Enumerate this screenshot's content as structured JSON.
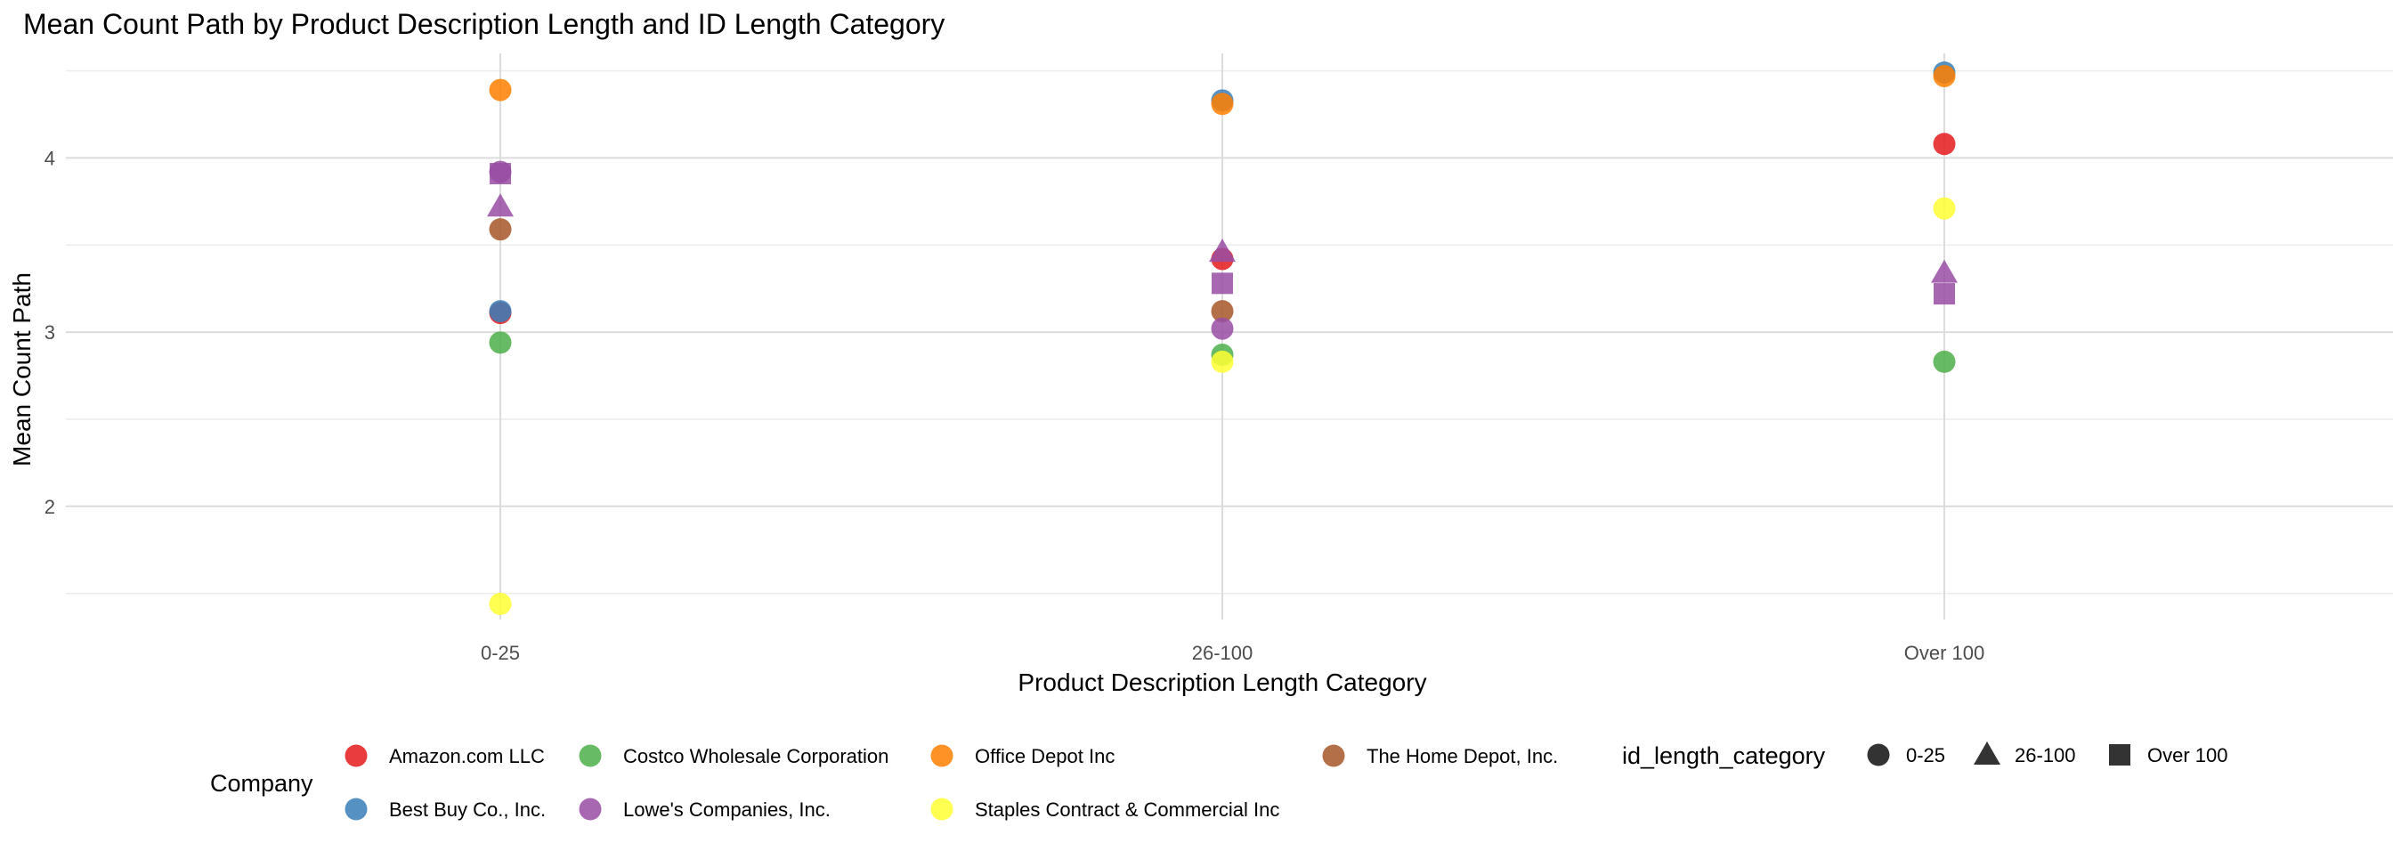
{
  "chart_data": {
    "type": "scatter",
    "title": "Mean Count Path by Product Description Length and ID Length Category",
    "xlabel": "Product Description Length Category",
    "ylabel": "Mean Count Path",
    "categories": [
      "0-25",
      "26-100",
      "Over 100"
    ],
    "ylim": [
      1.35,
      4.6
    ],
    "yticks": [
      2,
      3,
      4
    ],
    "grid": true,
    "legend_position": "bottom",
    "color_legend_title": "Company",
    "shape_legend_title": "id_length_category",
    "companies": [
      {
        "name": "Amazon.com LLC",
        "color": "#E41A1C"
      },
      {
        "name": "Best Buy Co., Inc.",
        "color": "#377EB8"
      },
      {
        "name": "Costco Wholesale Corporation",
        "color": "#4DAF4A"
      },
      {
        "name": "Lowe's Companies, Inc.",
        "color": "#984EA3"
      },
      {
        "name": "Office Depot Inc",
        "color": "#FF7F00"
      },
      {
        "name": "Staples Contract & Commercial Inc",
        "color": "#FFFF33"
      },
      {
        "name": "The Home Depot, Inc.",
        "color": "#A65628"
      }
    ],
    "shapes": [
      {
        "label": "0-25",
        "shape": "circle"
      },
      {
        "label": "26-100",
        "shape": "triangle"
      },
      {
        "label": "Over 100",
        "shape": "square"
      }
    ],
    "points": [
      {
        "x": "0-25",
        "y": 4.39,
        "company": "Office Depot Inc",
        "id_length_category": "0-25"
      },
      {
        "x": "0-25",
        "y": 3.92,
        "company": "Lowe's Companies, Inc.",
        "id_length_category": "0-25"
      },
      {
        "x": "0-25",
        "y": 3.91,
        "company": "Lowe's Companies, Inc.",
        "id_length_category": "Over 100"
      },
      {
        "x": "0-25",
        "y": 3.72,
        "company": "Lowe's Companies, Inc.",
        "id_length_category": "26-100"
      },
      {
        "x": "0-25",
        "y": 3.59,
        "company": "The Home Depot, Inc.",
        "id_length_category": "0-25"
      },
      {
        "x": "0-25",
        "y": 3.11,
        "company": "Amazon.com LLC",
        "id_length_category": "0-25"
      },
      {
        "x": "0-25",
        "y": 3.12,
        "company": "Best Buy Co., Inc.",
        "id_length_category": "0-25"
      },
      {
        "x": "0-25",
        "y": 2.94,
        "company": "Costco Wholesale Corporation",
        "id_length_category": "0-25"
      },
      {
        "x": "0-25",
        "y": 1.44,
        "company": "Staples Contract & Commercial Inc",
        "id_length_category": "0-25"
      },
      {
        "x": "26-100",
        "y": 4.33,
        "company": "Best Buy Co., Inc.",
        "id_length_category": "0-25"
      },
      {
        "x": "26-100",
        "y": 4.31,
        "company": "Office Depot Inc",
        "id_length_category": "0-25"
      },
      {
        "x": "26-100",
        "y": 3.42,
        "company": "Amazon.com LLC",
        "id_length_category": "0-25"
      },
      {
        "x": "26-100",
        "y": 3.46,
        "company": "Lowe's Companies, Inc.",
        "id_length_category": "26-100"
      },
      {
        "x": "26-100",
        "y": 3.28,
        "company": "Lowe's Companies, Inc.",
        "id_length_category": "Over 100"
      },
      {
        "x": "26-100",
        "y": 3.12,
        "company": "The Home Depot, Inc.",
        "id_length_category": "0-25"
      },
      {
        "x": "26-100",
        "y": 3.02,
        "company": "Lowe's Companies, Inc.",
        "id_length_category": "0-25"
      },
      {
        "x": "26-100",
        "y": 2.87,
        "company": "Costco Wholesale Corporation",
        "id_length_category": "0-25"
      },
      {
        "x": "26-100",
        "y": 2.83,
        "company": "Staples Contract & Commercial Inc",
        "id_length_category": "0-25"
      },
      {
        "x": "Over 100",
        "y": 4.49,
        "company": "Best Buy Co., Inc.",
        "id_length_category": "0-25"
      },
      {
        "x": "Over 100",
        "y": 4.47,
        "company": "Office Depot Inc",
        "id_length_category": "0-25"
      },
      {
        "x": "Over 100",
        "y": 4.08,
        "company": "Amazon.com LLC",
        "id_length_category": "0-25"
      },
      {
        "x": "Over 100",
        "y": 3.71,
        "company": "Staples Contract & Commercial Inc",
        "id_length_category": "0-25"
      },
      {
        "x": "Over 100",
        "y": 3.34,
        "company": "Lowe's Companies, Inc.",
        "id_length_category": "26-100"
      },
      {
        "x": "Over 100",
        "y": 3.22,
        "company": "Lowe's Companies, Inc.",
        "id_length_category": "Over 100"
      },
      {
        "x": "Over 100",
        "y": 2.83,
        "company": "Costco Wholesale Corporation",
        "id_length_category": "0-25"
      }
    ]
  }
}
